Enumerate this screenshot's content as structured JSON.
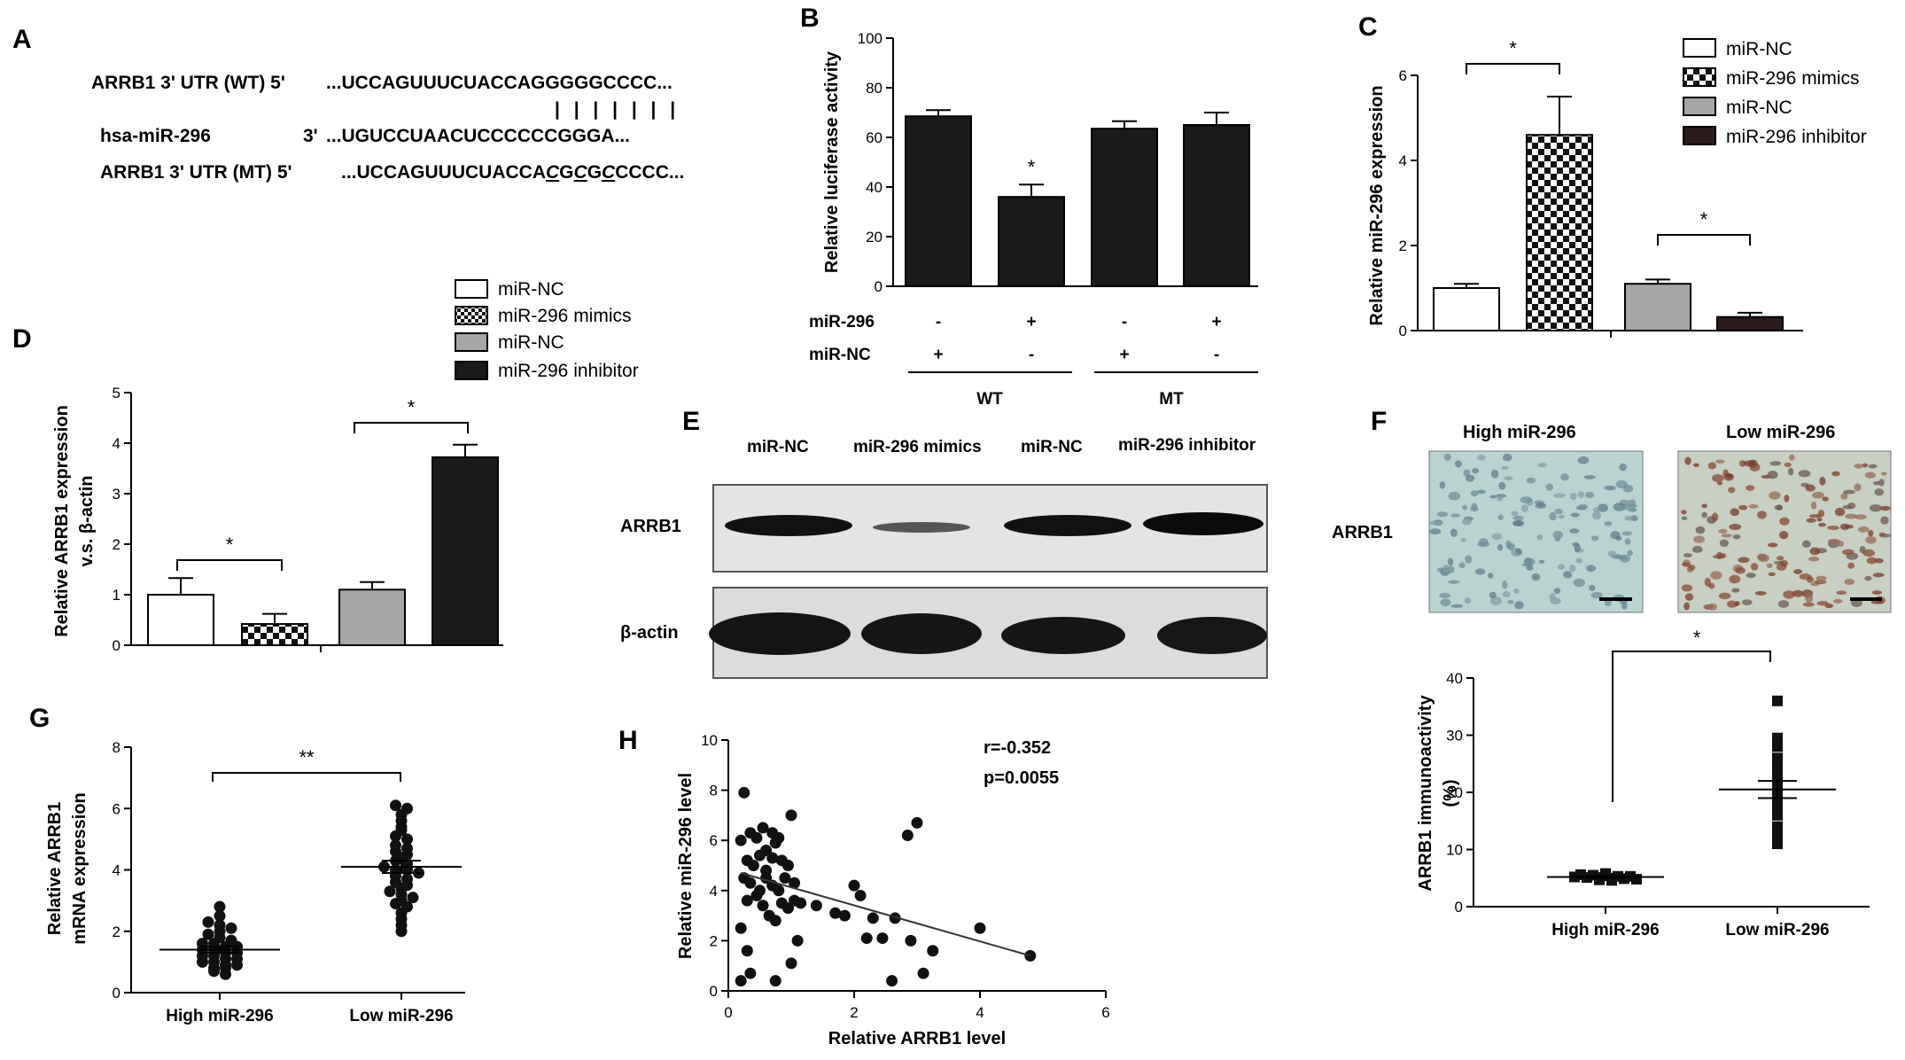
{
  "panel_labels": [
    "A",
    "B",
    "C",
    "D",
    "E",
    "F",
    "G",
    "H"
  ],
  "panelA": {
    "wt_label": "ARRB1 3' UTR (WT) 5'",
    "wt_seq": "...UCCAGUUUCUACCAGGGGGCCCC...",
    "pairing": "| | | | | | |",
    "mir_label": "hsa-miR-296",
    "mir_end": "3'",
    "mir_seq": "...UGUCCUAACUCCCCCCGGGA...",
    "mt_label": "ARRB1 3' UTR (MT) 5'",
    "mt_seq_parts": [
      {
        "t": "...UCCAGUUUCUACCA",
        "u": false
      },
      {
        "t": "C",
        "u": true
      },
      {
        "t": "G",
        "u": false
      },
      {
        "t": "C",
        "u": true
      },
      {
        "t": "G",
        "u": false
      },
      {
        "t": "C",
        "u": true
      },
      {
        "t": "CCCC...",
        "u": false
      }
    ]
  },
  "panelE": {
    "lanes": [
      "miR-NC",
      "miR-296 mimics",
      "miR-NC",
      "miR-296 inhibitor"
    ],
    "rows": [
      "ARRB1",
      "β-actin"
    ]
  },
  "panelF": {
    "image_titles": [
      "High miR-296",
      "Low miR-296"
    ],
    "row_label": "ARRB1"
  },
  "chart_data": [
    {
      "panel": "B",
      "type": "bar",
      "ylabel": "Relative luciferase activity",
      "ylim": [
        0,
        100
      ],
      "yticks": [
        0,
        20,
        40,
        60,
        80,
        100
      ],
      "values": [
        68.5,
        36,
        63.5,
        65
      ],
      "errors": [
        2.5,
        5,
        3,
        5
      ],
      "bar_color": "#1a1a1a",
      "table_rows": [
        {
          "label": "miR-296",
          "signs": [
            "-",
            "+",
            "-",
            "+"
          ]
        },
        {
          "label": "miR-NC",
          "signs": [
            "+",
            "-",
            "+",
            "-"
          ]
        }
      ],
      "groups": [
        "WT",
        "MT"
      ],
      "annotations": [
        "*"
      ]
    },
    {
      "panel": "C",
      "type": "bar",
      "ylabel": "Relative miR-296 expression",
      "ylim": [
        0,
        6
      ],
      "yticks": [
        0,
        2,
        4,
        6
      ],
      "values": [
        1.0,
        4.6,
        1.1,
        0.32
      ],
      "errors": [
        0.1,
        0.9,
        0.1,
        0.1
      ],
      "legend": [
        "miR-NC",
        "miR-296 mimics",
        "miR-NC",
        "miR-296 inhibitor"
      ],
      "colors": [
        "#ffffff",
        "checker",
        "#a6a6a6",
        "#2b1a1a"
      ],
      "legend_position": "right",
      "annotations": [
        "*",
        "*"
      ]
    },
    {
      "panel": "D",
      "type": "bar",
      "ylabel": "Relative ARRB1 expression",
      "ylabel2": "v.s. β-actin",
      "ylim": [
        0,
        5
      ],
      "yticks": [
        0,
        1,
        2,
        3,
        4,
        5
      ],
      "values": [
        1.0,
        0.42,
        1.1,
        3.72
      ],
      "errors": [
        0.33,
        0.2,
        0.15,
        0.25
      ],
      "legend": [
        "miR-NC",
        "miR-296 mimics",
        "miR-NC",
        "miR-296 inhibitor"
      ],
      "colors": [
        "#ffffff",
        "checker",
        "#a6a6a6",
        "#1a1a1a"
      ],
      "legend_position": "top",
      "annotations": [
        "*",
        "*"
      ]
    },
    {
      "panel": "F",
      "type": "scatter",
      "ylabel": "ARRB1 immunoactivity",
      "ylabel2": "(%)",
      "ylim": [
        0,
        40
      ],
      "yticks": [
        0,
        10,
        20,
        30,
        40
      ],
      "categories": [
        "High miR-296",
        "Low miR-296"
      ],
      "means": [
        5.2,
        20.5
      ],
      "sem": [
        0.2,
        1.5
      ],
      "groups": [
        {
          "name": "High miR-296",
          "values": [
            5.8,
            5.6,
            5.5,
            5.4,
            5.3,
            5.3,
            5.2,
            5.1,
            5.1,
            5.0,
            4.9,
            4.8,
            4.7,
            4.6
          ]
        },
        {
          "name": "Low miR-296",
          "values": [
            36,
            29.5,
            28,
            26,
            25.5,
            24.5,
            23,
            22.5,
            22,
            21.5,
            21,
            20.5,
            20,
            19.5,
            19,
            18.5,
            17.5,
            16,
            14,
            13,
            12,
            11
          ]
        }
      ],
      "annotations": [
        "*"
      ]
    },
    {
      "panel": "G",
      "type": "scatter",
      "ylabel": "Relative ARRB1",
      "ylabel2": "mRNA expression",
      "ylim": [
        0,
        8
      ],
      "yticks": [
        0,
        2,
        4,
        6,
        8
      ],
      "categories": [
        "High miR-296",
        "Low miR-296"
      ],
      "means": [
        1.4,
        4.1
      ],
      "sem": [
        0.1,
        0.2
      ],
      "groups": [
        {
          "name": "High miR-296",
          "values": [
            2.8,
            2.5,
            2.3,
            2.2,
            2.1,
            2.0,
            1.9,
            1.8,
            1.7,
            1.6,
            1.6,
            1.5,
            1.5,
            1.4,
            1.4,
            1.3,
            1.3,
            1.2,
            1.2,
            1.1,
            1.1,
            1.0,
            1.0,
            0.9,
            0.9,
            0.8,
            0.8,
            0.7,
            0.6
          ]
        },
        {
          "name": "Low miR-296",
          "values": [
            6.1,
            6.0,
            5.8,
            5.6,
            5.4,
            5.3,
            5.1,
            5.0,
            4.8,
            4.7,
            4.6,
            4.5,
            4.4,
            4.3,
            4.2,
            4.1,
            4.0,
            4.0,
            3.9,
            3.8,
            3.7,
            3.6,
            3.5,
            3.4,
            3.3,
            3.2,
            3.1,
            3.0,
            2.9,
            2.8,
            2.6,
            2.4,
            2.2,
            2.0
          ]
        }
      ],
      "annotations": [
        "**"
      ]
    },
    {
      "panel": "H",
      "type": "scatter",
      "xlabel": "Relative ARRB1 level",
      "ylabel": "Relative miR-296 level",
      "xlim": [
        0,
        6
      ],
      "ylim": [
        0,
        10
      ],
      "xticks": [
        0,
        2,
        4,
        6
      ],
      "yticks": [
        0,
        2,
        4,
        6,
        8,
        10
      ],
      "stats": [
        "r=-0.352",
        "p=0.0055"
      ],
      "fit": {
        "x0": 0.2,
        "y0": 4.7,
        "x1": 4.8,
        "y1": 1.4
      },
      "points": [
        [
          0.25,
          7.9
        ],
        [
          0.2,
          6.0
        ],
        [
          0.35,
          6.3
        ],
        [
          0.45,
          6.1
        ],
        [
          0.55,
          6.5
        ],
        [
          0.6,
          5.6
        ],
        [
          0.7,
          6.3
        ],
        [
          0.75,
          5.9
        ],
        [
          0.8,
          6.1
        ],
        [
          0.3,
          5.2
        ],
        [
          0.4,
          5.0
        ],
        [
          0.5,
          5.4
        ],
        [
          0.6,
          4.8
        ],
        [
          0.7,
          5.3
        ],
        [
          0.85,
          5.2
        ],
        [
          0.95,
          5.0
        ],
        [
          1.0,
          7.0
        ],
        [
          0.25,
          4.5
        ],
        [
          0.35,
          4.3
        ],
        [
          0.5,
          4.0
        ],
        [
          0.6,
          4.5
        ],
        [
          0.7,
          4.2
        ],
        [
          0.8,
          4.0
        ],
        [
          0.9,
          4.5
        ],
        [
          1.05,
          4.3
        ],
        [
          0.3,
          3.6
        ],
        [
          0.45,
          3.8
        ],
        [
          0.55,
          3.4
        ],
        [
          0.65,
          3.0
        ],
        [
          0.75,
          2.8
        ],
        [
          0.85,
          3.5
        ],
        [
          0.95,
          3.3
        ],
        [
          1.05,
          3.6
        ],
        [
          1.15,
          3.5
        ],
        [
          1.4,
          3.4
        ],
        [
          0.2,
          2.5
        ],
        [
          0.3,
          1.6
        ],
        [
          0.35,
          0.7
        ],
        [
          0.2,
          0.4
        ],
        [
          0.75,
          0.4
        ],
        [
          1.0,
          1.1
        ],
        [
          1.1,
          2.0
        ],
        [
          1.7,
          3.1
        ],
        [
          1.85,
          3.0
        ],
        [
          2.0,
          4.2
        ],
        [
          2.1,
          3.8
        ],
        [
          2.2,
          2.1
        ],
        [
          2.3,
          2.9
        ],
        [
          2.45,
          2.1
        ],
        [
          2.65,
          2.9
        ],
        [
          2.9,
          2.0
        ],
        [
          2.6,
          0.4
        ],
        [
          2.85,
          6.2
        ],
        [
          3.0,
          6.7
        ],
        [
          3.1,
          0.7
        ],
        [
          3.25,
          1.6
        ],
        [
          4.0,
          2.5
        ],
        [
          4.8,
          1.4
        ]
      ]
    }
  ]
}
